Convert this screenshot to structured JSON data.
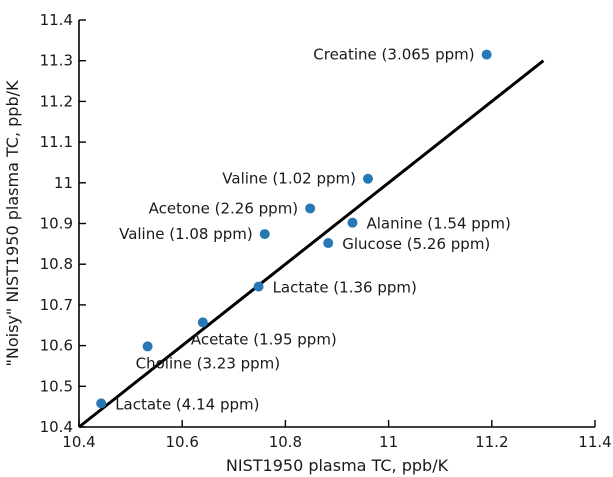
{
  "chart_data": {
    "type": "scatter",
    "title": "",
    "xlabel": "NIST1950 plasma TC, ppb/K",
    "ylabel": "\"Noisy\" NIST1950 plasma TC, ppb/K",
    "xlim": [
      10.4,
      11.4
    ],
    "ylim": [
      10.4,
      11.4
    ],
    "xticks": [
      10.4,
      10.6,
      10.8,
      11,
      11.2,
      11.4
    ],
    "xtick_labels": [
      "10.4",
      "10.6",
      "10.8",
      "11",
      "11.2",
      "11.4"
    ],
    "yticks": [
      10.4,
      10.5,
      10.6,
      10.7,
      10.8,
      10.9,
      11,
      11.1,
      11.2,
      11.3,
      11.4
    ],
    "ytick_labels": [
      "10.4",
      "10.5",
      "10.6",
      "10.7",
      "10.8",
      "10.9",
      "11",
      "11.1",
      "11.2",
      "11.3",
      "11.4"
    ],
    "grid": false,
    "point_color": "#2878b5",
    "line_color": "#000000",
    "reference_line": {
      "x": [
        10.4,
        11.3
      ],
      "y": [
        10.4,
        11.3
      ]
    },
    "points": [
      {
        "label": "Creatine (3.065 ppm)",
        "x": 11.19,
        "y": 11.315,
        "label_side": "left"
      },
      {
        "label": "Valine (1.02 ppm)",
        "x": 10.96,
        "y": 11.01,
        "label_side": "left"
      },
      {
        "label": "Acetone (2.26 ppm)",
        "x": 10.848,
        "y": 10.937,
        "label_side": "left"
      },
      {
        "label": "Alanine (1.54 ppm)",
        "x": 10.93,
        "y": 10.902,
        "label_side": "right"
      },
      {
        "label": "Valine (1.08 ppm)",
        "x": 10.76,
        "y": 10.874,
        "label_side": "left"
      },
      {
        "label": "Glucose (5.26 ppm)",
        "x": 10.883,
        "y": 10.852,
        "label_side": "right"
      },
      {
        "label": "Lactate (1.36 ppm)",
        "x": 10.748,
        "y": 10.745,
        "label_side": "right"
      },
      {
        "label": "Acetate (1.95 ppm)",
        "x": 10.64,
        "y": 10.657,
        "label_side": "below-right"
      },
      {
        "label": "Choline (3.23 ppm)",
        "x": 10.533,
        "y": 10.598,
        "label_side": "below-right"
      },
      {
        "label": "Lactate (4.14 ppm)",
        "x": 10.443,
        "y": 10.458,
        "label_side": "right"
      }
    ]
  }
}
